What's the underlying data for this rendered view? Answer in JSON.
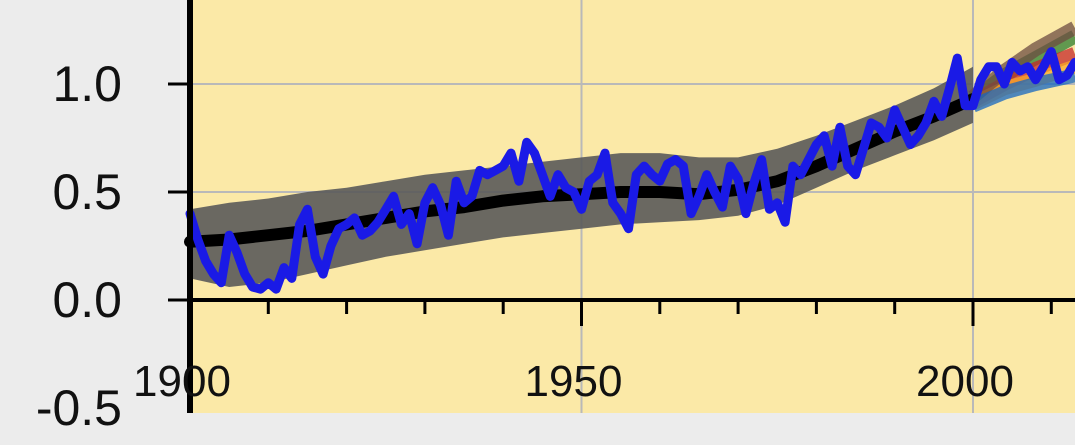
{
  "chart_data": {
    "type": "line",
    "title": "",
    "xlabel": "",
    "ylabel": "",
    "xlim": [
      1900,
      2013
    ],
    "ylim": [
      -0.5,
      1.3
    ],
    "x_ticks": [
      {
        "value": 1900,
        "label": "1900"
      },
      {
        "value": 1950,
        "label": "1950"
      },
      {
        "value": 2000,
        "label": "2000"
      }
    ],
    "y_ticks": [
      {
        "value": 1.0,
        "label": "1.0"
      },
      {
        "value": 0.5,
        "label": "0.5"
      },
      {
        "value": 0.0,
        "label": "0.0"
      },
      {
        "value": -0.5,
        "label": "-0.5"
      }
    ],
    "minor_x_ticks_every": 10,
    "grid": true,
    "colors": {
      "plot_background": "#fbe9a7",
      "page_background": "#ececec",
      "grid": "#b9b9b9",
      "observed_line": "#1a1ae6",
      "model_mean_line": "#000000",
      "model_range_band": "#5a5a5a",
      "projection_colors": [
        "#2e7d32",
        "#c62828",
        "#f9a825",
        "#6d4c41",
        "#1565c0"
      ]
    },
    "series": [
      {
        "role": "observed",
        "x": [
          1900,
          1901,
          1902,
          1903,
          1904,
          1905,
          1906,
          1907,
          1908,
          1909,
          1910,
          1911,
          1912,
          1913,
          1914,
          1915,
          1916,
          1917,
          1918,
          1919,
          1920,
          1921,
          1922,
          1923,
          1924,
          1925,
          1926,
          1927,
          1928,
          1929,
          1930,
          1931,
          1932,
          1933,
          1934,
          1935,
          1936,
          1937,
          1938,
          1939,
          1940,
          1941,
          1942,
          1943,
          1944,
          1945,
          1946,
          1947,
          1948,
          1949,
          1950,
          1951,
          1952,
          1953,
          1954,
          1955,
          1956,
          1957,
          1958,
          1959,
          1960,
          1961,
          1962,
          1963,
          1964,
          1965,
          1966,
          1967,
          1968,
          1969,
          1970,
          1971,
          1972,
          1973,
          1974,
          1975,
          1976,
          1977,
          1978,
          1979,
          1980,
          1981,
          1982,
          1983,
          1984,
          1985,
          1986,
          1987,
          1988,
          1989,
          1990,
          1991,
          1992,
          1993,
          1994,
          1995,
          1996,
          1997,
          1998,
          1999,
          2000,
          2001,
          2002,
          2003,
          2004,
          2005,
          2006,
          2007,
          2008,
          2009,
          2010,
          2011,
          2012,
          2013
        ],
        "values": [
          0.4,
          0.28,
          0.18,
          0.12,
          0.08,
          0.3,
          0.22,
          0.12,
          0.06,
          0.05,
          0.08,
          0.05,
          0.15,
          0.1,
          0.35,
          0.42,
          0.2,
          0.12,
          0.25,
          0.33,
          0.35,
          0.38,
          0.3,
          0.32,
          0.36,
          0.42,
          0.48,
          0.35,
          0.4,
          0.26,
          0.45,
          0.52,
          0.44,
          0.3,
          0.55,
          0.45,
          0.48,
          0.6,
          0.58,
          0.6,
          0.62,
          0.68,
          0.55,
          0.73,
          0.68,
          0.58,
          0.48,
          0.58,
          0.52,
          0.5,
          0.42,
          0.55,
          0.58,
          0.68,
          0.45,
          0.4,
          0.33,
          0.58,
          0.62,
          0.58,
          0.55,
          0.63,
          0.65,
          0.62,
          0.4,
          0.48,
          0.58,
          0.5,
          0.43,
          0.62,
          0.56,
          0.4,
          0.54,
          0.65,
          0.42,
          0.45,
          0.36,
          0.62,
          0.58,
          0.65,
          0.72,
          0.76,
          0.62,
          0.8,
          0.62,
          0.58,
          0.7,
          0.82,
          0.8,
          0.75,
          0.88,
          0.8,
          0.72,
          0.76,
          0.82,
          0.92,
          0.85,
          0.98,
          1.12,
          0.9,
          0.9,
          1.02,
          1.08,
          1.08,
          1.0,
          1.1,
          1.06,
          1.08,
          1.02,
          1.08,
          1.15,
          1.02,
          1.04,
          1.1
        ]
      },
      {
        "role": "model-mean",
        "x": [
          1900,
          1905,
          1910,
          1915,
          1920,
          1925,
          1930,
          1935,
          1940,
          1945,
          1950,
          1955,
          1960,
          1965,
          1970,
          1975,
          1980,
          1985,
          1990,
          1995,
          2000
        ],
        "values": [
          0.27,
          0.28,
          0.3,
          0.32,
          0.35,
          0.38,
          0.41,
          0.43,
          0.46,
          0.48,
          0.49,
          0.5,
          0.5,
          0.49,
          0.51,
          0.55,
          0.62,
          0.7,
          0.78,
          0.85,
          0.93
        ]
      },
      {
        "role": "model-range",
        "x": [
          1900,
          1905,
          1910,
          1915,
          1920,
          1925,
          1930,
          1935,
          1940,
          1945,
          1950,
          1955,
          1960,
          1965,
          1970,
          1975,
          1980,
          1985,
          1990,
          1995,
          2000
        ],
        "low": [
          0.1,
          0.06,
          0.08,
          0.12,
          0.16,
          0.2,
          0.23,
          0.26,
          0.29,
          0.31,
          0.33,
          0.35,
          0.36,
          0.37,
          0.39,
          0.44,
          0.52,
          0.6,
          0.67,
          0.74,
          0.82
        ],
        "high": [
          0.42,
          0.45,
          0.47,
          0.5,
          0.52,
          0.55,
          0.58,
          0.6,
          0.62,
          0.64,
          0.66,
          0.68,
          0.68,
          0.66,
          0.66,
          0.7,
          0.76,
          0.83,
          0.9,
          0.98,
          1.08
        ]
      }
    ],
    "projections": [
      {
        "x": [
          2000,
          2004,
          2008,
          2013
        ],
        "values": [
          0.93,
          1.04,
          1.12,
          1.22
        ]
      },
      {
        "x": [
          2000,
          2004,
          2008,
          2013
        ],
        "values": [
          0.92,
          1.0,
          1.07,
          1.14
        ]
      },
      {
        "x": [
          2000,
          2004,
          2008,
          2013
        ],
        "values": [
          0.91,
          0.98,
          1.02,
          1.08
        ]
      },
      {
        "x": [
          2000,
          2004,
          2008,
          2013
        ],
        "values": [
          0.94,
          1.06,
          1.16,
          1.26
        ]
      },
      {
        "x": [
          2000,
          2004,
          2008,
          2013
        ],
        "values": [
          0.9,
          0.96,
          1.0,
          1.04
        ]
      }
    ]
  }
}
